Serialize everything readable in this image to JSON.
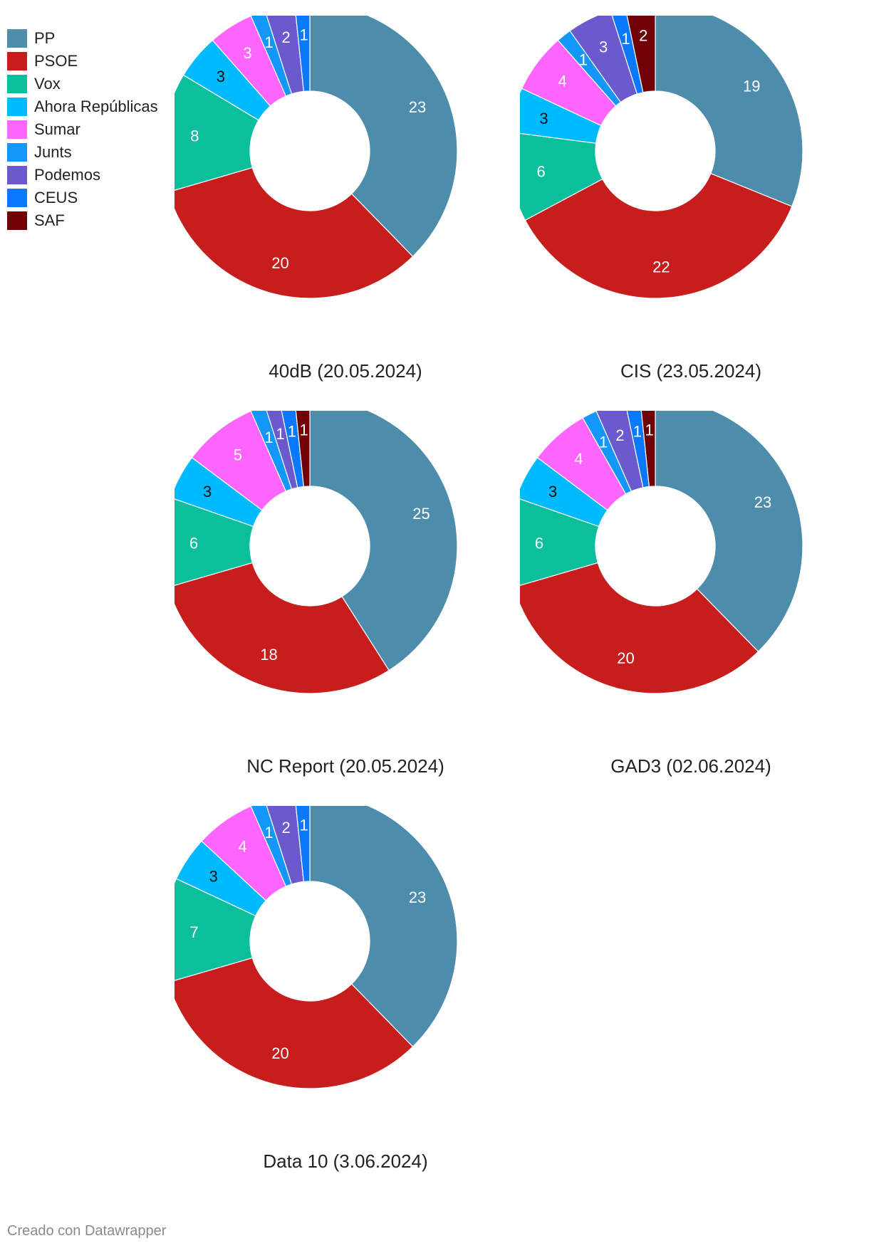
{
  "chart_data": {
    "type": "pie",
    "subtype": "donut",
    "legend": [
      {
        "name": "PP",
        "color": "#4e8cab"
      },
      {
        "name": "PSOE",
        "color": "#c71e1d"
      },
      {
        "name": "Vox",
        "color": "#0bbf9d"
      },
      {
        "name": "Ahora Repúblicas",
        "color": "#00baff"
      },
      {
        "name": "Sumar",
        "color": "#ff66ff"
      },
      {
        "name": "Junts",
        "color": "#1497fa"
      },
      {
        "name": "Podemos",
        "color": "#6a5acd"
      },
      {
        "name": "CEUS",
        "color": "#0a79ff"
      },
      {
        "name": "SAF",
        "color": "#700005"
      }
    ],
    "charts": [
      {
        "title": "40dB (20.05.2024)",
        "values": [
          23,
          20,
          8,
          3,
          3,
          1,
          2,
          1,
          0
        ]
      },
      {
        "title": "CIS (23.05.2024)",
        "values": [
          19,
          22,
          6,
          3,
          4,
          1,
          3,
          1,
          2
        ]
      },
      {
        "title": "NC Report (20.05.2024)",
        "values": [
          25,
          18,
          6,
          3,
          5,
          1,
          1,
          1,
          1
        ]
      },
      {
        "title": "GAD3 (02.06.2024)",
        "values": [
          23,
          20,
          6,
          3,
          4,
          1,
          2,
          1,
          1
        ]
      },
      {
        "title": "Data 10 (3.06.2024)",
        "values": [
          23,
          20,
          7,
          3,
          4,
          1,
          2,
          1,
          0
        ]
      }
    ],
    "label_colors": [
      "#ffffff",
      "#ffffff",
      "#ffffff",
      "#111111",
      "#ffffff",
      "#ffffff",
      "#ffffff",
      "#ffffff",
      "#ffffff"
    ]
  },
  "footer": "Creado con Datawrapper"
}
